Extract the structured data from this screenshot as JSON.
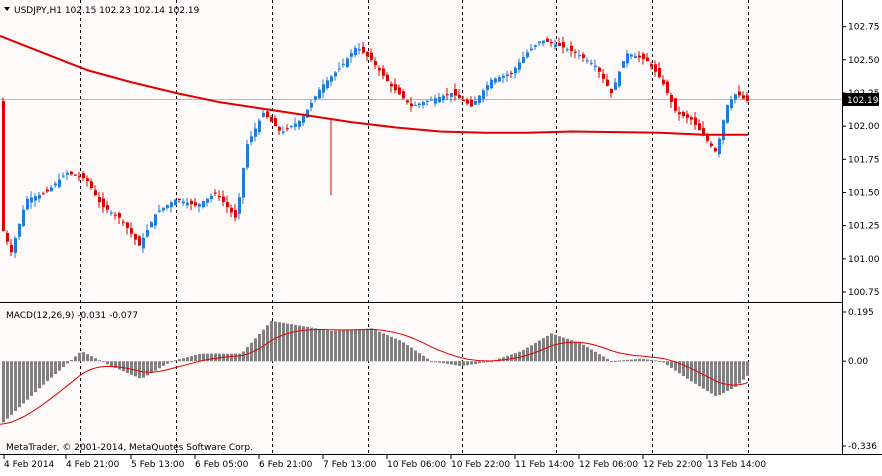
{
  "chart_data": [
    {
      "type": "candlestick",
      "title": "USDJPY,H1  102.15 102.23 102.14 102.19",
      "symbol": "USDJPY",
      "timeframe": "H1",
      "ohlc_current": {
        "open": 102.15,
        "high": 102.23,
        "low": 102.14,
        "close": 102.19
      },
      "current_price_label": "102.19",
      "ylim": [
        100.7,
        102.85
      ],
      "yticks": [
        "102.75",
        "102.50",
        "102.25",
        "102.00",
        "101.75",
        "101.50",
        "101.25",
        "101.00",
        "100.75"
      ],
      "xticks": [
        "4 Feb 2014",
        "4 Feb 21:00",
        "5 Feb 13:00",
        "6 Feb 05:00",
        "6 Feb 21:00",
        "7 Feb 13:00",
        "10 Feb 06:00",
        "10 Feb 22:00",
        "11 Feb 14:00",
        "12 Feb 06:00",
        "12 Feb 22:00",
        "13 Feb 14:00"
      ],
      "series": [
        {
          "name": "",
          "kind": "moving-average",
          "color": "#e00000",
          "points": [
            102.68,
            102.55,
            102.42,
            102.33,
            102.25,
            102.18,
            102.13,
            102.08,
            102.03,
            101.99,
            101.96,
            101.95,
            101.95,
            101.96,
            101.955,
            101.95,
            101.935,
            101.935
          ]
        }
      ],
      "up_color": "#1e7be0",
      "down_color": "#e00000",
      "grid": false
    },
    {
      "type": "bar",
      "title": "MACD(12,26,9) -0.031 -0.077",
      "ylim": [
        -0.336,
        0.195
      ],
      "yticks": [
        "0.195",
        "0.00",
        "-0.336"
      ],
      "signal_color": "#e00000",
      "hist_color": "#808080"
    }
  ],
  "footer": {
    "copyright": "MetaTrader, © 2001-2014, MetaQuotes Software Corp."
  }
}
